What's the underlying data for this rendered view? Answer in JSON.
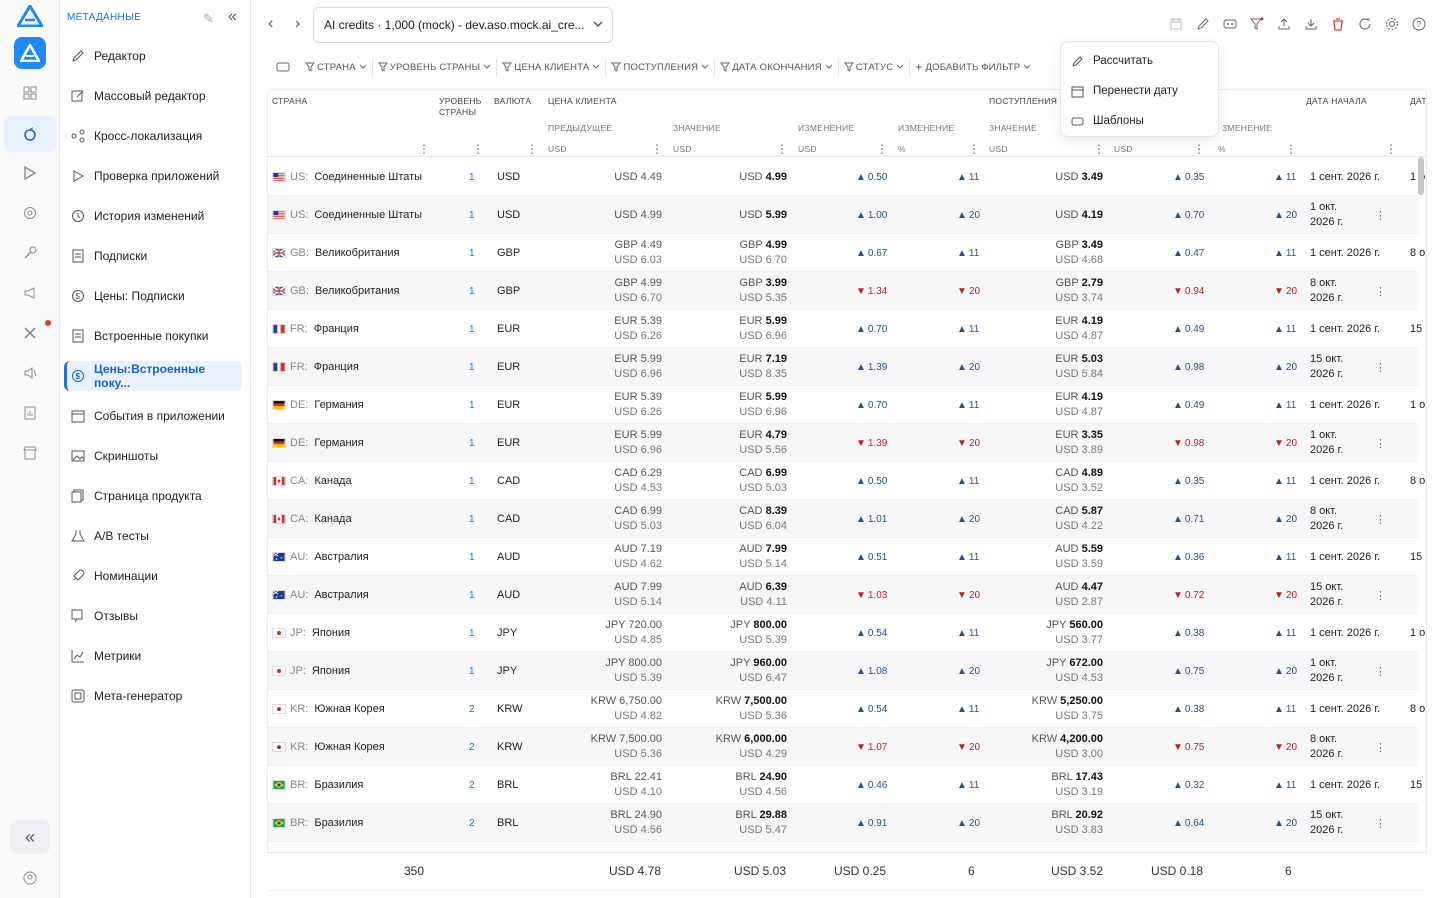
{
  "app": {
    "brand_color": "#1f6fe0"
  },
  "sidebar": {
    "title": "МЕТАДАННЫЕ",
    "items": [
      {
        "label": "Редактор",
        "icon": "pencil-icon"
      },
      {
        "label": "Массовый редактор",
        "icon": "edit-box-icon"
      },
      {
        "label": "Кросс-локализация",
        "icon": "share-icon"
      },
      {
        "label": "Проверка приложений",
        "icon": "play-icon"
      },
      {
        "label": "История изменений",
        "icon": "history-icon"
      },
      {
        "label": "Подписки",
        "icon": "document-icon"
      },
      {
        "label": "Цены: Подписки",
        "icon": "dollar-icon"
      },
      {
        "label": "Встроенные покупки",
        "icon": "document-icon"
      },
      {
        "label": "Цены:Встроенные поку...",
        "icon": "dollar-icon",
        "active": true
      },
      {
        "label": "События в приложении",
        "icon": "calendar-icon"
      },
      {
        "label": "Скриншоты",
        "icon": "image-icon"
      },
      {
        "label": "Страница продукта",
        "icon": "pages-icon"
      },
      {
        "label": "A/B тесты",
        "icon": "flask-icon"
      },
      {
        "label": "Номинации",
        "icon": "rocket-icon"
      },
      {
        "label": "Отзывы",
        "icon": "reviews-icon"
      },
      {
        "label": "Метрики",
        "icon": "chart-icon"
      },
      {
        "label": "Мета-генератор",
        "icon": "generator-icon"
      }
    ]
  },
  "top": {
    "app_selector": "AI credits · 1,000 (mock) - dev.aso.mock.ai_cre..."
  },
  "filters": [
    "СТРАНА",
    "УРОВЕНЬ СТРАНЫ",
    "ЦЕНА КЛИЕНТА",
    "ПОСТУПЛЕНИЯ",
    "ДАТА ОКОНЧАНИЯ",
    "СТАТУС",
    "ДОБАВИТЬ ФИЛЬТР"
  ],
  "menu": {
    "items": [
      "Рассчитать",
      "Перенести дату",
      "Шаблоны"
    ]
  },
  "table": {
    "headers": {
      "country": "СТРАНА",
      "tier": "УРОВЕНЬ СТРАНЫ",
      "currency": "ВАЛЮТА",
      "customer_price": "ЦЕНА КЛИЕНТА",
      "proceeds": "ПОСТУПЛЕНИЯ",
      "start_date": "ДАТА НАЧАЛА",
      "end_date": "ДАТ."
    },
    "subheaders": {
      "prev": "ПРЕДЫДУЩЕЕ",
      "value": "ЗНАЧЕНИЕ",
      "change": "ИЗМЕНЕНИЕ",
      "change2": "ИЗМЕНЕНИЕ",
      "pvalue": "ЗНАЧЕНИЕ",
      "pchange2": "ЗМЕНЕНИЕ"
    },
    "units": {
      "usd": "USD",
      "pct": "%"
    },
    "rows": [
      {
        "flag": "us",
        "code": "US:",
        "country": "Соединенные Штаты",
        "tier": "1",
        "cur": "USD",
        "prev_top": "USD 4.49",
        "prev_bot": "",
        "val_cur": "USD",
        "val_num": "4.99",
        "val_bot": "",
        "ch": "0.50",
        "chp": "11",
        "dir": "up",
        "p_cur": "USD",
        "p_num": "3.49",
        "p_bot": "",
        "pch": "0.35",
        "pchp": "11",
        "date": "1 сент. 2026 г.",
        "date2": "",
        "extra": "1 o"
      },
      {
        "flag": "us",
        "code": "US:",
        "country": "Соединенные Штаты",
        "tier": "1",
        "cur": "USD",
        "prev_top": "USD 4.99",
        "prev_bot": "",
        "val_cur": "USD",
        "val_num": "5.99",
        "val_bot": "",
        "ch": "1.00",
        "chp": "20",
        "dir": "up",
        "p_cur": "USD",
        "p_num": "4.19",
        "p_bot": "",
        "pch": "0.70",
        "pchp": "20",
        "date": "1 окт.",
        "date2": "2026 г.",
        "extra": "⋮"
      },
      {
        "flag": "gb",
        "code": "GB:",
        "country": "Великобритания",
        "tier": "1",
        "cur": "GBP",
        "prev_top": "GBP 4.49",
        "prev_bot": "USD 6.03",
        "val_cur": "GBP",
        "val_num": "4.99",
        "val_bot": "USD 6.70",
        "ch": "0.67",
        "chp": "11",
        "dir": "up",
        "p_cur": "GBP",
        "p_num": "3.49",
        "p_bot": "USD 4.68",
        "pch": "0.47",
        "pchp": "11",
        "date": "1 сент. 2026 г.",
        "date2": "",
        "extra": "8 o"
      },
      {
        "flag": "gb",
        "code": "GB:",
        "country": "Великобритания",
        "tier": "1",
        "cur": "GBP",
        "prev_top": "GBP 4.99",
        "prev_bot": "USD 6.70",
        "val_cur": "GBP",
        "val_num": "3.99",
        "val_bot": "USD 5.35",
        "ch": "1.34",
        "chp": "20",
        "dir": "dn",
        "p_cur": "GBP",
        "p_num": "2.79",
        "p_bot": "USD 3.74",
        "pch": "0.94",
        "pchp": "20",
        "date": "8 окт.",
        "date2": "2026 г.",
        "extra": "⋮"
      },
      {
        "flag": "fr",
        "code": "FR:",
        "country": "Франция",
        "tier": "1",
        "cur": "EUR",
        "prev_top": "EUR 5.39",
        "prev_bot": "USD 6.26",
        "val_cur": "EUR",
        "val_num": "5.99",
        "val_bot": "USD 6.96",
        "ch": "0.70",
        "chp": "11",
        "dir": "up",
        "p_cur": "EUR",
        "p_num": "4.19",
        "p_bot": "USD 4.87",
        "pch": "0.49",
        "pchp": "11",
        "date": "1 сент. 2026 г.",
        "date2": "",
        "extra": "15"
      },
      {
        "flag": "fr",
        "code": "FR:",
        "country": "Франция",
        "tier": "1",
        "cur": "EUR",
        "prev_top": "EUR 5.99",
        "prev_bot": "USD 6.96",
        "val_cur": "EUR",
        "val_num": "7.19",
        "val_bot": "USD 8.35",
        "ch": "1.39",
        "chp": "20",
        "dir": "up",
        "p_cur": "EUR",
        "p_num": "5.03",
        "p_bot": "USD 5.84",
        "pch": "0.98",
        "pchp": "20",
        "date": "15 окт.",
        "date2": "2026 г.",
        "extra": "⋮"
      },
      {
        "flag": "de",
        "code": "DE:",
        "country": "Германия",
        "tier": "1",
        "cur": "EUR",
        "prev_top": "EUR 5.39",
        "prev_bot": "USD 6.26",
        "val_cur": "EUR",
        "val_num": "5.99",
        "val_bot": "USD 6.96",
        "ch": "0.70",
        "chp": "11",
        "dir": "up",
        "p_cur": "EUR",
        "p_num": "4.19",
        "p_bot": "USD 4.87",
        "pch": "0.49",
        "pchp": "11",
        "date": "1 сент. 2026 г.",
        "date2": "",
        "extra": "1 o"
      },
      {
        "flag": "de",
        "code": "DE:",
        "country": "Германия",
        "tier": "1",
        "cur": "EUR",
        "prev_top": "EUR 5.99",
        "prev_bot": "USD 6.96",
        "val_cur": "EUR",
        "val_num": "4.79",
        "val_bot": "USD 5.56",
        "ch": "1.39",
        "chp": "20",
        "dir": "dn",
        "p_cur": "EUR",
        "p_num": "3.35",
        "p_bot": "USD 3.89",
        "pch": "0.98",
        "pchp": "20",
        "date": "1 окт.",
        "date2": "2026 г.",
        "extra": "⋮"
      },
      {
        "flag": "ca",
        "code": "CA:",
        "country": "Канада",
        "tier": "1",
        "cur": "CAD",
        "prev_top": "CAD 6.29",
        "prev_bot": "USD 4.53",
        "val_cur": "CAD",
        "val_num": "6.99",
        "val_bot": "USD 5.03",
        "ch": "0.50",
        "chp": "11",
        "dir": "up",
        "p_cur": "CAD",
        "p_num": "4.89",
        "p_bot": "USD 3.52",
        "pch": "0.35",
        "pchp": "11",
        "date": "1 сент. 2026 г.",
        "date2": "",
        "extra": "8 o"
      },
      {
        "flag": "ca",
        "code": "CA:",
        "country": "Канада",
        "tier": "1",
        "cur": "CAD",
        "prev_top": "CAD 6.99",
        "prev_bot": "USD 5.03",
        "val_cur": "CAD",
        "val_num": "8.39",
        "val_bot": "USD 6.04",
        "ch": "1.01",
        "chp": "20",
        "dir": "up",
        "p_cur": "CAD",
        "p_num": "5.87",
        "p_bot": "USD 4.22",
        "pch": "0.71",
        "pchp": "20",
        "date": "8 окт.",
        "date2": "2026 г.",
        "extra": "⋮"
      },
      {
        "flag": "au",
        "code": "AU:",
        "country": "Австралия",
        "tier": "1",
        "cur": "AUD",
        "prev_top": "AUD 7.19",
        "prev_bot": "USD 4.62",
        "val_cur": "AUD",
        "val_num": "7.99",
        "val_bot": "USD 5.14",
        "ch": "0.51",
        "chp": "11",
        "dir": "up",
        "p_cur": "AUD",
        "p_num": "5.59",
        "p_bot": "USD 3.59",
        "pch": "0.36",
        "pchp": "11",
        "date": "1 сент. 2026 г.",
        "date2": "",
        "extra": "15"
      },
      {
        "flag": "au",
        "code": "AU:",
        "country": "Австралия",
        "tier": "1",
        "cur": "AUD",
        "prev_top": "AUD 7.99",
        "prev_bot": "USD 5.14",
        "val_cur": "AUD",
        "val_num": "6.39",
        "val_bot": "USD 4.11",
        "ch": "1.03",
        "chp": "20",
        "dir": "dn",
        "p_cur": "AUD",
        "p_num": "4.47",
        "p_bot": "USD 2.87",
        "pch": "0.72",
        "pchp": "20",
        "date": "15 окт.",
        "date2": "2026 г.",
        "extra": "⋮"
      },
      {
        "flag": "jp",
        "code": "JP:",
        "country": "Япония",
        "tier": "1",
        "cur": "JPY",
        "prev_top": "JPY 720.00",
        "prev_bot": "USD 4.85",
        "val_cur": "JPY",
        "val_num": "800.00",
        "val_bot": "USD 5.39",
        "ch": "0.54",
        "chp": "11",
        "dir": "up",
        "p_cur": "JPY",
        "p_num": "560.00",
        "p_bot": "USD 3.77",
        "pch": "0.38",
        "pchp": "11",
        "date": "1 сент. 2026 г.",
        "date2": "",
        "extra": "1 o"
      },
      {
        "flag": "jp",
        "code": "JP:",
        "country": "Япония",
        "tier": "1",
        "cur": "JPY",
        "prev_top": "JPY 800.00",
        "prev_bot": "USD 5.39",
        "val_cur": "JPY",
        "val_num": "960.00",
        "val_bot": "USD 6.47",
        "ch": "1.08",
        "chp": "20",
        "dir": "up",
        "p_cur": "JPY",
        "p_num": "672.00",
        "p_bot": "USD 4.53",
        "pch": "0.75",
        "pchp": "20",
        "date": "1 окт.",
        "date2": "2026 г.",
        "extra": "⋮"
      },
      {
        "flag": "kr",
        "code": "KR:",
        "country": "Южная Корея",
        "tier": "2",
        "cur": "KRW",
        "prev_top": "KRW 6,750.00",
        "prev_bot": "USD 4.82",
        "val_cur": "KRW",
        "val_num": "7,500.00",
        "val_bot": "USD 5.36",
        "ch": "0.54",
        "chp": "11",
        "dir": "up",
        "p_cur": "KRW",
        "p_num": "5,250.00",
        "p_bot": "USD 3.75",
        "pch": "0.38",
        "pchp": "11",
        "date": "1 сент. 2026 г.",
        "date2": "",
        "extra": "8 o"
      },
      {
        "flag": "kr",
        "code": "KR:",
        "country": "Южная Корея",
        "tier": "2",
        "cur": "KRW",
        "prev_top": "KRW 7,500.00",
        "prev_bot": "USD 5.36",
        "val_cur": "KRW",
        "val_num": "6,000.00",
        "val_bot": "USD 4.29",
        "ch": "1.07",
        "chp": "20",
        "dir": "dn",
        "p_cur": "KRW",
        "p_num": "4,200.00",
        "p_bot": "USD 3.00",
        "pch": "0.75",
        "pchp": "20",
        "date": "8 окт.",
        "date2": "2026 г.",
        "extra": "⋮"
      },
      {
        "flag": "br",
        "code": "BR:",
        "country": "Бразилия",
        "tier": "2",
        "cur": "BRL",
        "prev_top": "BRL 22.41",
        "prev_bot": "USD 4.10",
        "val_cur": "BRL",
        "val_num": "24.90",
        "val_bot": "USD 4.56",
        "ch": "0.46",
        "chp": "11",
        "dir": "up",
        "p_cur": "BRL",
        "p_num": "17.43",
        "p_bot": "USD 3.19",
        "pch": "0.32",
        "pchp": "11",
        "date": "1 сент. 2026 г.",
        "date2": "",
        "extra": "15"
      },
      {
        "flag": "br",
        "code": "BR:",
        "country": "Бразилия",
        "tier": "2",
        "cur": "BRL",
        "prev_top": "BRL 24.90",
        "prev_bot": "USD 4.56",
        "val_cur": "BRL",
        "val_num": "29.88",
        "val_bot": "USD 5.47",
        "ch": "0.91",
        "chp": "20",
        "dir": "up",
        "p_cur": "BRL",
        "p_num": "20.92",
        "p_bot": "USD 3.83",
        "pch": "0.64",
        "pchp": "20",
        "date": "15 окт.",
        "date2": "2026 г.",
        "extra": "⋮"
      }
    ],
    "footer": {
      "count": "350",
      "prev": "USD 4.78",
      "value": "USD 5.03",
      "change": "USD 0.25",
      "change_pct": "6",
      "proceeds": "USD 3.52",
      "pchange": "USD 0.18",
      "pchange_pct": "6"
    }
  }
}
